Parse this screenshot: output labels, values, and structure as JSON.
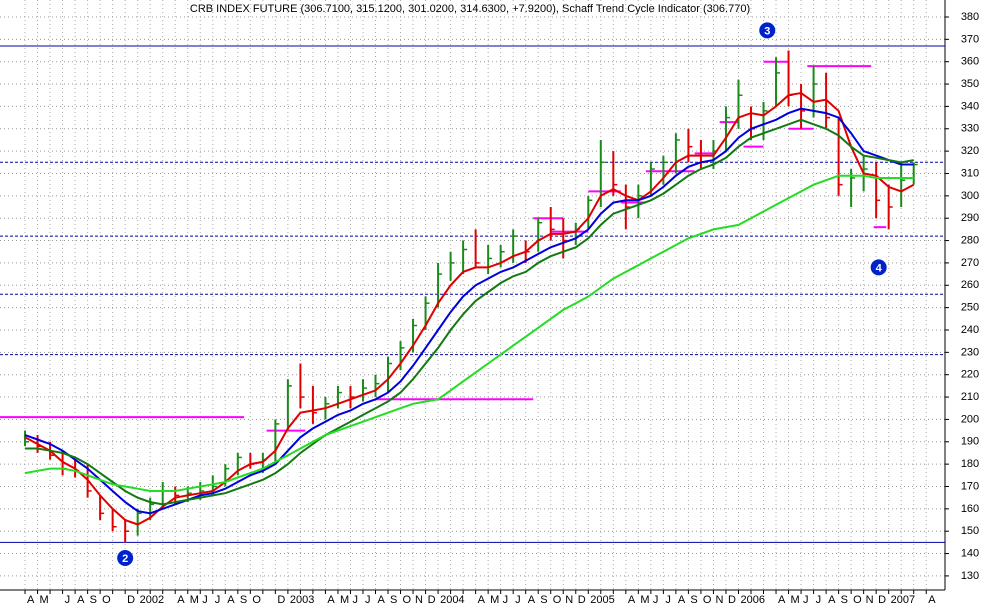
{
  "chart_data": {
    "type": "ohlc",
    "title": "CRB INDEX FUTURE (306.7100, 315.1200, 301.0200, 314.6300, +7.9200), Schaff Trend Cycle Indicator (306.770)",
    "categories": [
      "A",
      "M",
      null,
      "J",
      "A",
      "S",
      "O",
      null,
      "D",
      "2002",
      null,
      null,
      "A",
      "M",
      "J",
      "J",
      "A",
      "S",
      "O",
      null,
      "D",
      "2003",
      null,
      null,
      "A",
      "M",
      "J",
      "J",
      "A",
      "S",
      "O",
      "N",
      "D",
      "2004",
      null,
      null,
      "A",
      "M",
      "J",
      "J",
      "A",
      "S",
      "O",
      "N",
      "D",
      "2005",
      null,
      null,
      "A",
      "M",
      "J",
      "J",
      "A",
      "S",
      "O",
      "N",
      "D",
      "2006",
      null,
      null,
      "A",
      "M",
      "J",
      "J",
      "A",
      "S",
      "O",
      "N",
      "D",
      "2007",
      null,
      null,
      "A"
    ],
    "high": [
      195,
      193,
      190,
      186,
      182,
      180,
      166,
      160,
      155,
      160,
      165,
      172,
      170,
      170,
      172,
      175,
      180,
      185,
      185,
      185,
      200,
      218,
      225,
      215,
      210,
      215,
      215,
      218,
      220,
      228,
      235,
      245,
      255,
      270,
      275,
      280,
      285,
      278,
      278,
      285,
      280,
      290,
      295,
      290,
      288,
      300,
      325,
      320,
      305,
      305,
      315,
      318,
      328,
      330,
      325,
      325,
      340,
      352,
      340,
      342,
      362,
      365,
      350,
      358,
      355,
      335,
      312,
      318,
      315,
      305,
      315,
      315,
      null
    ],
    "low": [
      188,
      185,
      182,
      175,
      174,
      165,
      155,
      150,
      145,
      148,
      155,
      160,
      162,
      163,
      164,
      166,
      170,
      175,
      178,
      176,
      180,
      195,
      205,
      198,
      200,
      205,
      205,
      208,
      210,
      212,
      222,
      230,
      240,
      250,
      262,
      265,
      268,
      265,
      268,
      270,
      270,
      275,
      280,
      272,
      278,
      285,
      295,
      300,
      285,
      290,
      300,
      305,
      310,
      315,
      312,
      312,
      320,
      330,
      325,
      325,
      340,
      340,
      330,
      335,
      330,
      300,
      295,
      302,
      290,
      285,
      295,
      305,
      null
    ],
    "close": [
      190,
      188,
      184,
      178,
      177,
      168,
      158,
      152,
      150,
      158,
      162,
      168,
      166,
      167,
      168,
      170,
      178,
      183,
      180,
      182,
      198,
      215,
      210,
      203,
      207,
      212,
      210,
      214,
      216,
      225,
      232,
      242,
      252,
      265,
      270,
      276,
      270,
      272,
      275,
      282,
      275,
      288,
      285,
      280,
      285,
      298,
      315,
      305,
      295,
      300,
      312,
      315,
      325,
      322,
      315,
      320,
      335,
      345,
      330,
      338,
      355,
      345,
      338,
      350,
      335,
      305,
      308,
      312,
      298,
      295,
      307,
      314,
      null
    ],
    "up_color": "#1a8a1a",
    "down_color": "#e00000",
    "series": [
      {
        "name": "red",
        "color": "#e00000",
        "values": [
          192,
          189,
          186,
          181,
          178,
          173,
          166,
          160,
          155,
          153,
          156,
          161,
          165,
          166,
          167,
          168,
          172,
          177,
          180,
          181,
          186,
          196,
          203,
          204,
          205,
          207,
          209,
          211,
          213,
          218,
          225,
          233,
          242,
          252,
          260,
          266,
          268,
          268,
          270,
          273,
          275,
          280,
          283,
          283,
          284,
          290,
          300,
          303,
          300,
          298,
          302,
          308,
          315,
          318,
          318,
          318,
          326,
          335,
          337,
          336,
          340,
          345,
          346,
          342,
          343,
          338,
          322,
          310,
          309,
          304,
          302,
          305,
          null
        ]
      },
      {
        "name": "blue",
        "color": "#0000dd",
        "values": [
          193,
          191,
          189,
          186,
          182,
          178,
          173,
          168,
          163,
          159,
          158,
          160,
          162,
          164,
          166,
          167,
          169,
          172,
          175,
          177,
          180,
          186,
          192,
          196,
          199,
          202,
          204,
          207,
          209,
          212,
          217,
          224,
          232,
          240,
          248,
          255,
          260,
          263,
          266,
          268,
          271,
          274,
          277,
          279,
          281,
          285,
          292,
          297,
          298,
          298,
          300,
          304,
          309,
          313,
          315,
          316,
          320,
          326,
          330,
          332,
          334,
          337,
          339,
          338,
          337,
          335,
          328,
          320,
          318,
          316,
          314,
          314,
          null
        ]
      },
      {
        "name": "darkgreen",
        "color": "#127a12",
        "values": [
          187,
          187,
          186,
          185,
          183,
          180,
          176,
          172,
          168,
          165,
          163,
          162,
          163,
          164,
          165,
          166,
          167,
          169,
          171,
          173,
          176,
          180,
          185,
          189,
          193,
          196,
          199,
          202,
          205,
          208,
          212,
          218,
          225,
          232,
          240,
          247,
          253,
          257,
          261,
          264,
          266,
          270,
          273,
          275,
          277,
          281,
          287,
          292,
          294,
          296,
          298,
          301,
          305,
          309,
          312,
          314,
          317,
          322,
          326,
          328,
          330,
          332,
          334,
          332,
          330,
          327,
          322,
          318,
          317,
          316,
          315,
          316,
          null
        ]
      },
      {
        "name": "lightgreen",
        "color": "#22dd22",
        "values": [
          176,
          177,
          178,
          178,
          177,
          175,
          173,
          171,
          170,
          169,
          168,
          168,
          168,
          169,
          170,
          171,
          172,
          174,
          176,
          178,
          181,
          184,
          187,
          190,
          193,
          195,
          197,
          199,
          201,
          203,
          205,
          207,
          208,
          209,
          213,
          217,
          221,
          225,
          229,
          233,
          237,
          241,
          245,
          249,
          252,
          255,
          259,
          263,
          266,
          269,
          272,
          275,
          278,
          281,
          283,
          285,
          286,
          287,
          290,
          293,
          296,
          299,
          302,
          305,
          307,
          309,
          309,
          309,
          308,
          308,
          308,
          308,
          null
        ]
      }
    ],
    "hlines": [
      {
        "value": 367,
        "dashed": false
      },
      {
        "value": 315,
        "dashed": true
      },
      {
        "value": 282,
        "dashed": true
      },
      {
        "value": 256,
        "dashed": true
      },
      {
        "value": 229,
        "dashed": true
      },
      {
        "value": 145,
        "dashed": false
      }
    ],
    "hline_color": "#0000aa",
    "segments": [
      {
        "from": -2,
        "to": 17.5,
        "value": 201
      },
      {
        "from": 19.3,
        "to": 22.4,
        "value": 195
      },
      {
        "from": 28,
        "to": 40.6,
        "value": 209
      },
      {
        "from": 40.6,
        "to": 43,
        "value": 290
      },
      {
        "from": 42,
        "to": 45,
        "value": 284
      },
      {
        "from": 45,
        "to": 47.6,
        "value": 302
      },
      {
        "from": 47.6,
        "to": 49.6,
        "value": 297
      },
      {
        "from": 49.6,
        "to": 53.5,
        "value": 311
      },
      {
        "from": 53.5,
        "to": 55,
        "value": 319
      },
      {
        "from": 55.5,
        "to": 57,
        "value": 333
      },
      {
        "from": 57.4,
        "to": 59,
        "value": 322
      },
      {
        "from": 59,
        "to": 61,
        "value": 360
      },
      {
        "from": 61,
        "to": 63,
        "value": 330
      },
      {
        "from": 62.5,
        "to": 67.6,
        "value": 358
      },
      {
        "from": 67.8,
        "to": 68.8,
        "value": 286
      }
    ],
    "segment_color": "#ff00ff",
    "annotations": [
      {
        "text": "2",
        "x": 8,
        "y": 138
      },
      {
        "text": "3",
        "x": 59.3,
        "y": 374
      },
      {
        "text": "4",
        "x": 68.2,
        "y": 268
      }
    ],
    "annotation_color": "#0022cc",
    "xlim": [
      -2,
      73.5
    ],
    "ylim": [
      123.7,
      387.6
    ],
    "yticks": [
      130,
      140,
      150,
      160,
      170,
      180,
      190,
      200,
      210,
      220,
      230,
      240,
      250,
      260,
      270,
      280,
      290,
      300,
      310,
      320,
      330,
      340,
      350,
      360,
      370,
      380
    ],
    "grid": true
  }
}
